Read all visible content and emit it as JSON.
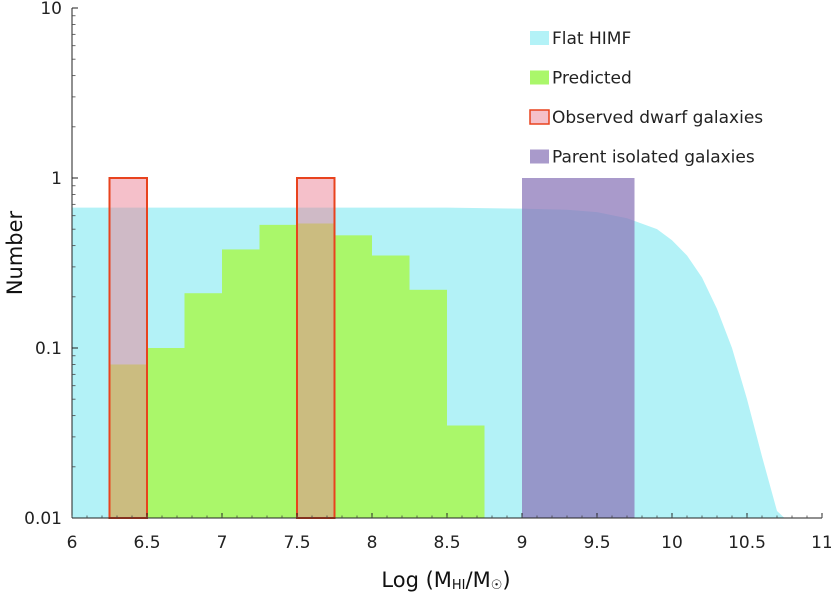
{
  "chart_data": {
    "type": "bar",
    "xlabel_main": "Log (M",
    "xlabel_sub": "HI",
    "xlabel_mid": "/M",
    "xlabel_symbol": "☉",
    "xlabel_end": ")",
    "ylabel": "Number",
    "xlim": [
      6,
      11
    ],
    "ylim": [
      0.01,
      10
    ],
    "yscale": "log",
    "x_ticks": [
      {
        "value": 6,
        "label": "6"
      },
      {
        "value": 6.5,
        "label": "6.5"
      },
      {
        "value": 7,
        "label": "7"
      },
      {
        "value": 7.5,
        "label": "7.5"
      },
      {
        "value": 8,
        "label": "8"
      },
      {
        "value": 8.5,
        "label": "8.5"
      },
      {
        "value": 9,
        "label": "9"
      },
      {
        "value": 9.5,
        "label": "9.5"
      },
      {
        "value": 10,
        "label": "10"
      },
      {
        "value": 10.5,
        "label": "10.5"
      },
      {
        "value": 11,
        "label": "11"
      }
    ],
    "y_ticks": [
      {
        "value": 0.01,
        "label": "0.01"
      },
      {
        "value": 0.1,
        "label": "0.1"
      },
      {
        "value": 1,
        "label": "1"
      },
      {
        "value": 10,
        "label": "10"
      }
    ],
    "legend_position": "top-right",
    "series": [
      {
        "name": "Flat HIMF",
        "kind": "area",
        "color": "#b3f2f7",
        "x": [
          6.0,
          6.5,
          7.0,
          7.5,
          8.0,
          8.5,
          9.0,
          9.3,
          9.5,
          9.7,
          9.9,
          10.0,
          10.1,
          10.2,
          10.3,
          10.4,
          10.5,
          10.6,
          10.7,
          10.75
        ],
        "y": [
          0.67,
          0.67,
          0.67,
          0.67,
          0.67,
          0.67,
          0.66,
          0.65,
          0.63,
          0.58,
          0.5,
          0.43,
          0.35,
          0.26,
          0.17,
          0.1,
          0.05,
          0.023,
          0.011,
          0.01
        ]
      },
      {
        "name": "Predicted",
        "kind": "histogram",
        "color": "#aaf76a",
        "bins": [
          {
            "x0": 6.25,
            "x1": 6.5,
            "value": 0.08
          },
          {
            "x0": 6.5,
            "x1": 6.75,
            "value": 0.1
          },
          {
            "x0": 6.75,
            "x1": 7.0,
            "value": 0.21
          },
          {
            "x0": 7.0,
            "x1": 7.25,
            "value": 0.38
          },
          {
            "x0": 7.25,
            "x1": 7.5,
            "value": 0.53
          },
          {
            "x0": 7.5,
            "x1": 7.75,
            "value": 0.54
          },
          {
            "x0": 7.75,
            "x1": 8.0,
            "value": 0.46
          },
          {
            "x0": 8.0,
            "x1": 8.25,
            "value": 0.35
          },
          {
            "x0": 8.25,
            "x1": 8.5,
            "value": 0.22
          },
          {
            "x0": 8.5,
            "x1": 8.75,
            "value": 0.035
          }
        ]
      },
      {
        "name": "Observed dwarf galaxies",
        "kind": "histogram",
        "color": "rgba(235,130,150,0.5)",
        "stroke": "#e8431e",
        "bins": [
          {
            "x0": 6.25,
            "x1": 6.5,
            "value": 1
          },
          {
            "x0": 7.5,
            "x1": 7.75,
            "value": 1
          }
        ]
      },
      {
        "name": "Parent isolated galaxies",
        "kind": "histogram",
        "color": "rgba(140,120,185,0.75)",
        "bins": [
          {
            "x0": 9.0,
            "x1": 9.75,
            "value": 1
          }
        ]
      }
    ]
  }
}
